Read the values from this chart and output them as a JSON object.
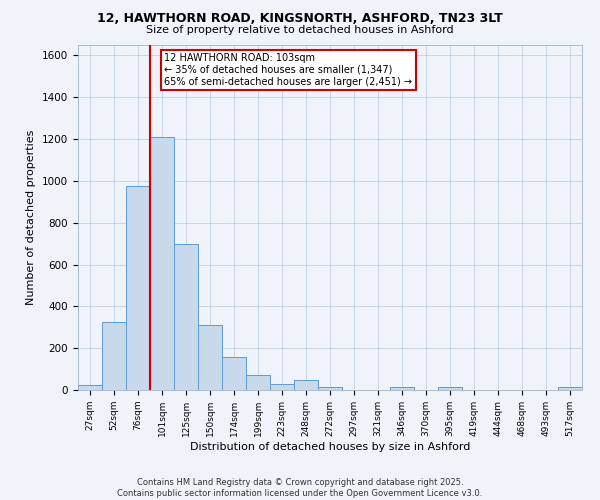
{
  "title_line1": "12, HAWTHORN ROAD, KINGSNORTH, ASHFORD, TN23 3LT",
  "title_line2": "Size of property relative to detached houses in Ashford",
  "xlabel": "Distribution of detached houses by size in Ashford",
  "ylabel": "Number of detached properties",
  "categories": [
    "27sqm",
    "52sqm",
    "76sqm",
    "101sqm",
    "125sqm",
    "150sqm",
    "174sqm",
    "199sqm",
    "223sqm",
    "248sqm",
    "272sqm",
    "297sqm",
    "321sqm",
    "346sqm",
    "370sqm",
    "395sqm",
    "419sqm",
    "444sqm",
    "468sqm",
    "493sqm",
    "517sqm"
  ],
  "values": [
    25,
    325,
    975,
    1210,
    700,
    310,
    160,
    70,
    30,
    50,
    15,
    0,
    0,
    15,
    0,
    15,
    0,
    0,
    0,
    0,
    12
  ],
  "bar_color": "#c9d9ec",
  "bar_edge_color": "#5b9bd5",
  "vline_color": "#cc0000",
  "annotation_text": "12 HAWTHORN ROAD: 103sqm\n← 35% of detached houses are smaller (1,347)\n65% of semi-detached houses are larger (2,451) →",
  "annotation_box_color": "white",
  "annotation_box_edge": "#cc0000",
  "ylim": [
    0,
    1650
  ],
  "yticks": [
    0,
    200,
    400,
    600,
    800,
    1000,
    1200,
    1400,
    1600
  ],
  "bg_color": "#f0f4fa",
  "footer_line1": "Contains HM Land Registry data © Crown copyright and database right 2025.",
  "footer_line2": "Contains public sector information licensed under the Open Government Licence v3.0."
}
